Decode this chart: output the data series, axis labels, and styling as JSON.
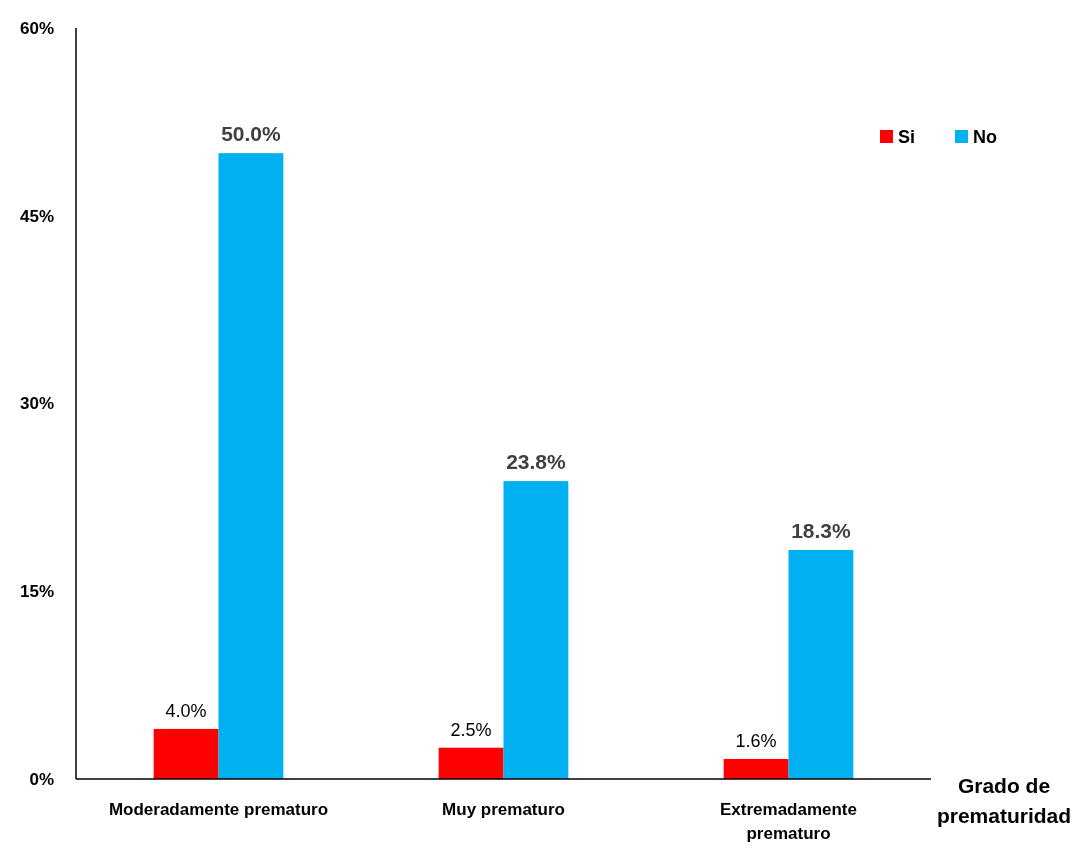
{
  "chart_data": {
    "type": "bar",
    "xlabel": "Grado de prematuridad",
    "categories": [
      "Moderadamente prematuro",
      "Muy prematuro",
      "Extremadamente prematuro"
    ],
    "series": [
      {
        "name": "Si",
        "color": "#ff0000",
        "values": [
          4.0,
          2.5,
          1.6
        ],
        "value_labels": [
          "4.0%",
          "2.5%",
          "1.6%"
        ]
      },
      {
        "name": "No",
        "color": "#00b0f0",
        "values": [
          50.0,
          23.8,
          18.3
        ],
        "value_labels": [
          "50.0%",
          "23.8%",
          "18.3%"
        ]
      }
    ],
    "ylim": [
      0,
      60
    ],
    "yticks": [
      {
        "value": 0,
        "label": "0%"
      },
      {
        "value": 15,
        "label": "15%"
      },
      {
        "value": 30,
        "label": "30%"
      },
      {
        "value": 45,
        "label": "45%"
      },
      {
        "value": 60,
        "label": "60%"
      }
    ],
    "grid": false,
    "legend": "top right"
  }
}
